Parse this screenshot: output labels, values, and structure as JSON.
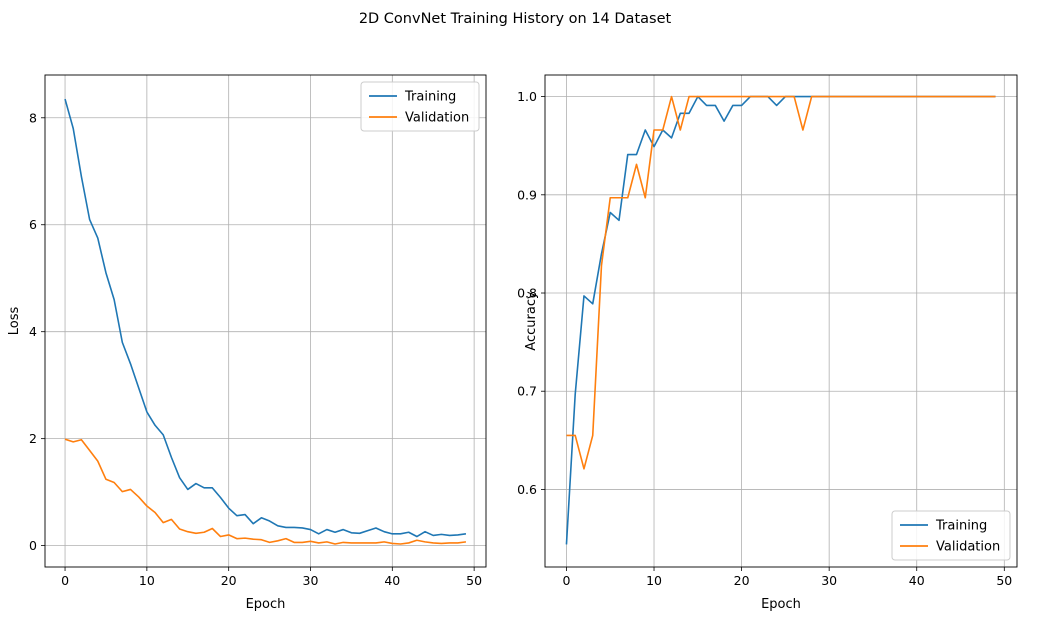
{
  "figure": {
    "title": "2D ConvNet Training History on 14 Dataset"
  },
  "chart_data": [
    {
      "type": "line",
      "title": "",
      "xlabel": "Epoch",
      "ylabel": "Loss",
      "xlim": [
        -2.45,
        51.45
      ],
      "ylim": [
        -0.4,
        8.8
      ],
      "xticks": [
        0,
        10,
        20,
        30,
        40,
        50
      ],
      "yticks": [
        0,
        2,
        4,
        6,
        8
      ],
      "tick_labels_y": [
        "0",
        "2",
        "4",
        "6",
        "8"
      ],
      "grid": true,
      "legend_position": "top-right",
      "x": [
        0,
        1,
        2,
        3,
        4,
        5,
        6,
        7,
        8,
        9,
        10,
        11,
        12,
        13,
        14,
        15,
        16,
        17,
        18,
        19,
        20,
        21,
        22,
        23,
        24,
        25,
        26,
        27,
        28,
        29,
        30,
        31,
        32,
        33,
        34,
        35,
        36,
        37,
        38,
        39,
        40,
        41,
        42,
        43,
        44,
        45,
        46,
        47,
        48,
        49
      ],
      "series": [
        {
          "name": "Training",
          "color": "#1f77b4",
          "values": [
            8.35,
            7.8,
            6.9,
            6.1,
            5.75,
            5.1,
            4.6,
            3.8,
            3.4,
            2.95,
            2.5,
            2.25,
            2.07,
            1.65,
            1.27,
            1.05,
            1.16,
            1.08,
            1.08,
            0.9,
            0.7,
            0.56,
            0.58,
            0.41,
            0.52,
            0.46,
            0.37,
            0.34,
            0.34,
            0.33,
            0.3,
            0.22,
            0.3,
            0.25,
            0.3,
            0.24,
            0.23,
            0.28,
            0.33,
            0.26,
            0.22,
            0.22,
            0.25,
            0.17,
            0.26,
            0.19,
            0.21,
            0.19,
            0.2,
            0.22
          ]
        },
        {
          "name": "Validation",
          "color": "#ff7f0e",
          "values": [
            1.99,
            1.94,
            1.98,
            1.78,
            1.58,
            1.24,
            1.18,
            1.01,
            1.05,
            0.91,
            0.74,
            0.62,
            0.43,
            0.49,
            0.31,
            0.26,
            0.23,
            0.25,
            0.32,
            0.17,
            0.2,
            0.13,
            0.14,
            0.12,
            0.11,
            0.06,
            0.09,
            0.13,
            0.06,
            0.06,
            0.08,
            0.05,
            0.07,
            0.03,
            0.06,
            0.05,
            0.05,
            0.05,
            0.05,
            0.07,
            0.04,
            0.03,
            0.05,
            0.1,
            0.07,
            0.05,
            0.04,
            0.05,
            0.05,
            0.07
          ]
        }
      ]
    },
    {
      "type": "line",
      "title": "",
      "xlabel": "Epoch",
      "ylabel": "Accuracy",
      "xlim": [
        -2.45,
        51.45
      ],
      "ylim": [
        0.521,
        1.022
      ],
      "xticks": [
        0,
        10,
        20,
        30,
        40,
        50
      ],
      "yticks": [
        0.6,
        0.7,
        0.8,
        0.9,
        1.0
      ],
      "tick_labels_y": [
        "0.6",
        "0.7",
        "0.8",
        "0.9",
        "1.0"
      ],
      "grid": true,
      "legend_position": "bottom-right",
      "x": [
        0,
        1,
        2,
        3,
        4,
        5,
        6,
        7,
        8,
        9,
        10,
        11,
        12,
        13,
        14,
        15,
        16,
        17,
        18,
        19,
        20,
        21,
        22,
        23,
        24,
        25,
        26,
        27,
        28,
        29,
        30,
        31,
        32,
        33,
        34,
        35,
        36,
        37,
        38,
        39,
        40,
        41,
        42,
        43,
        44,
        45,
        46,
        47,
        48,
        49
      ],
      "series": [
        {
          "name": "Training",
          "color": "#1f77b4",
          "values": [
            0.544,
            0.697,
            0.797,
            0.789,
            0.84,
            0.882,
            0.874,
            0.941,
            0.941,
            0.966,
            0.949,
            0.966,
            0.958,
            0.983,
            0.983,
            1.0,
            0.991,
            0.991,
            0.975,
            0.991,
            0.991,
            1.0,
            1.0,
            1.0,
            0.991,
            1.0,
            1.0,
            1.0,
            1.0,
            1.0,
            1.0,
            1.0,
            1.0,
            1.0,
            1.0,
            1.0,
            1.0,
            1.0,
            1.0,
            1.0,
            1.0,
            1.0,
            1.0,
            1.0,
            1.0,
            1.0,
            1.0,
            1.0,
            1.0,
            1.0
          ]
        },
        {
          "name": "Validation",
          "color": "#ff7f0e",
          "values": [
            0.655,
            0.655,
            0.621,
            0.655,
            0.828,
            0.897,
            0.897,
            0.897,
            0.931,
            0.897,
            0.966,
            0.966,
            1.0,
            0.966,
            1.0,
            1.0,
            1.0,
            1.0,
            1.0,
            1.0,
            1.0,
            1.0,
            1.0,
            1.0,
            1.0,
            1.0,
            1.0,
            0.966,
            1.0,
            1.0,
            1.0,
            1.0,
            1.0,
            1.0,
            1.0,
            1.0,
            1.0,
            1.0,
            1.0,
            1.0,
            1.0,
            1.0,
            1.0,
            1.0,
            1.0,
            1.0,
            1.0,
            1.0,
            1.0,
            1.0
          ]
        }
      ]
    }
  ]
}
